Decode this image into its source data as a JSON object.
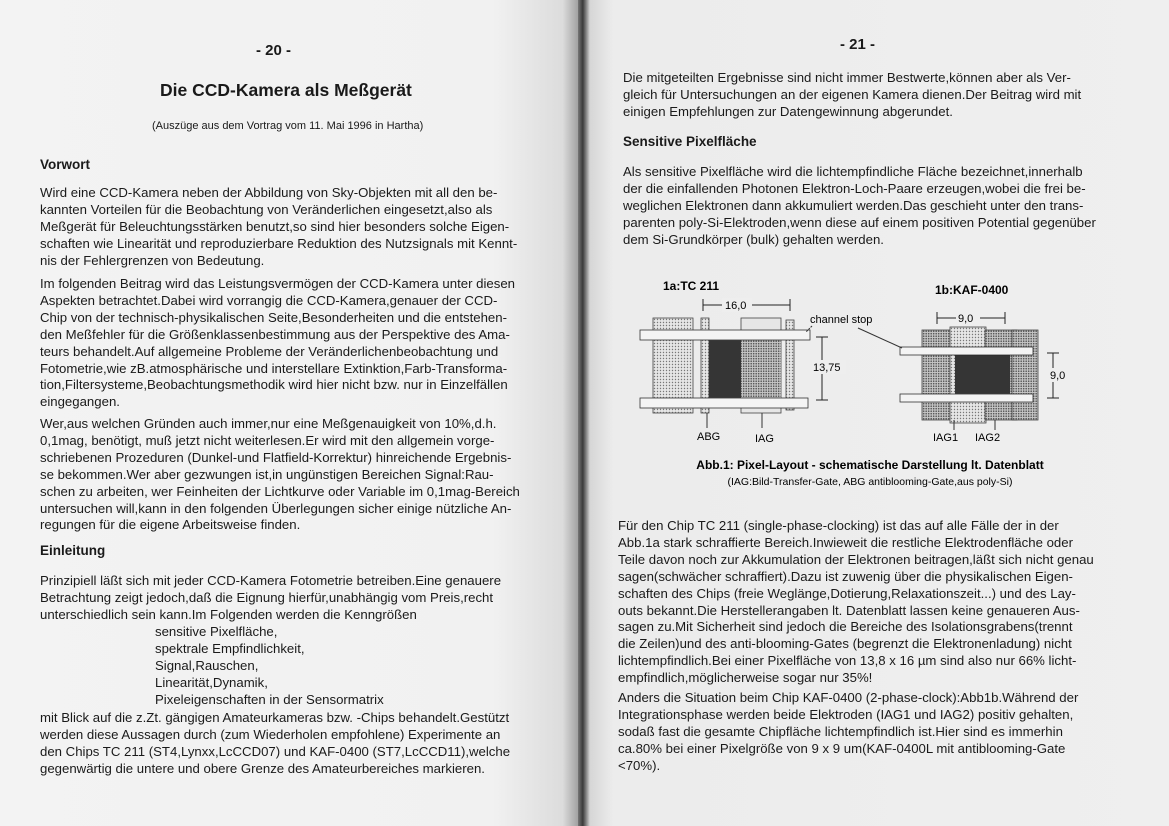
{
  "left_page": {
    "page_number": "- 20 -",
    "title": "Die CCD-Kamera als Meßgerät",
    "subtitle": "(Auszüge aus dem Vortrag vom 11. Mai 1996 in Hartha)",
    "section1_heading": "Vorwort",
    "para1": [
      "Wird eine CCD-Kamera neben der Abbildung von Sky-Objekten mit all den be-",
      "kannten Vorteilen für die Beobachtung von Veränderlichen eingesetzt,also als",
      "Meßgerät für Beleuchtungsstärken benutzt,so sind hier besonders solche Eigen-",
      "schaften wie Linearität und reproduzierbare Reduktion des Nutzsignals mit Kennt-",
      "nis der Fehlergrenzen von Bedeutung."
    ],
    "para2": [
      "Im folgenden Beitrag wird das Leistungsvermögen der CCD-Kamera unter diesen",
      "Aspekten betrachtet.Dabei wird vorrangig die CCD-Kamera,genauer der CCD-",
      "Chip von der technisch-physikalischen Seite,Besonderheiten und die entstehen-",
      "den Meßfehler für die Größenklassenbestimmung aus der Perspektive des Ama-",
      "teurs behandelt.Auf allgemeine Probleme der Veränderlichenbeobachtung und",
      "Fotometrie,wie zB.atmosphärische und interstellare Extinktion,Farb-Transforma-",
      "tion,Filtersysteme,Beobachtungsmethodik wird hier nicht bzw. nur in Einzelfällen",
      "eingegangen."
    ],
    "para3": [
      "Wer,aus welchen Gründen auch immer,nur eine Meßgenauigkeit von 10%,d.h.",
      "0,1mag, benötigt, muß jetzt nicht weiterlesen.Er wird mit den allgemein vorge-",
      "schriebenen Prozeduren (Dunkel-und Flatfield-Korrektur) hinreichende Ergebnis-",
      "se bekommen.Wer aber gezwungen ist,in ungünstigen Bereichen Signal:Rau-",
      "schen zu arbeiten, wer Feinheiten der Lichtkurve oder Variable im 0,1mag-Bereich",
      "untersuchen will,kann in den folgenden Überlegungen sicher einige nützliche An-",
      "regungen für die eigene Arbeitsweise finden."
    ],
    "section2_heading": "Einleitung",
    "para4": [
      "Prinzipiell läßt sich mit jeder CCD-Kamera Fotometrie betreiben.Eine genauere",
      "Betrachtung zeigt jedoch,daß die Eignung hierfür,unabhängig vom Preis,recht",
      "unterschiedlich sein kann.Im Folgenden werden die Kenngrößen"
    ],
    "list": [
      "sensitive Pixelfläche,",
      "spektrale Empfindlichkeit,",
      "Signal,Rauschen,",
      "Linearität,Dynamik,",
      "Pixeleigenschaften in der Sensormatrix"
    ],
    "para5": [
      "mit Blick auf die z.Zt. gängigen Amateurkameras bzw. -Chips behandelt.Gestützt",
      "werden diese Aussagen durch (zum Wiederholen empfohlene) Experimente an",
      "den Chips TC 211 (ST4,Lynxx,LcCCD07) und KAF-0400 (ST7,LcCCD11),welche",
      "gegenwärtig die untere und obere Grenze des Amateurbereiches markieren."
    ]
  },
  "right_page": {
    "page_number": "- 21 -",
    "para1": [
      "Die mitgeteilten Ergebnisse sind nicht immer Bestwerte,können aber als Ver-",
      "gleich für Untersuchungen an der eigenen Kamera dienen.Der Beitrag wird mit",
      "einigen Empfehlungen zur Datengewinnung abgerundet."
    ],
    "section_heading": "Sensitive Pixelfläche",
    "para2": [
      "Als sensitive Pixelfläche wird die lichtempfindliche Fläche bezeichnet,innerhalb",
      "der die einfallenden Photonen Elektron-Loch-Paare erzeugen,wobei die frei be-",
      "weglichen Elektronen dann akkumuliert werden.Das geschieht unter den trans-",
      "parenten poly-Si-Elektroden,wenn diese auf einem positiven Potential gegenüber",
      "dem Si-Grundkörper (bulk) gehalten werden."
    ],
    "figure": {
      "label_a": "1a:TC 211",
      "label_b": "1b:KAF-0400",
      "dim_a_width": "16,0",
      "dim_a_height": "13,75",
      "dim_b_width": "9,0",
      "dim_b_height": "9,0",
      "channel_stop": "channel stop",
      "abg": "ABG",
      "iag": "IAG",
      "iag1": "IAG1",
      "iag2": "IAG2",
      "caption": "Abb.1: Pixel-Layout - schematische Darstellung lt. Datenblatt",
      "subcaption": "(IAG:Bild-Transfer-Gate, ABG antiblooming-Gate,aus poly-Si)"
    },
    "para3": [
      "Für den Chip TC 211 (single-phase-clocking) ist das auf alle Fälle der in der",
      "Abb.1a stark schraffierte Bereich.Inwieweit die restliche Elektrodenfläche oder",
      "Teile davon noch zur Akkumulation der Elektronen beitragen,läßt sich nicht genau",
      "sagen(schwächer schraffiert).Dazu ist zuwenig über die physikalischen Eigen-",
      "schaften des Chips (freie Weglänge,Dotierung,Relaxationszeit...) und des Lay-",
      "outs bekannt.Die Herstellerangaben lt. Datenblatt lassen keine genaueren Aus-",
      "sagen zu.Mit Sicherheit sind jedoch die Bereiche des Isolationsgrabens(trennt",
      "die Zeilen)und des anti-blooming-Gates (begrenzt die Elektronenladung) nicht",
      "lichtempfindlich.Bei einer Pixelfläche von 13,8 x 16 µm sind also nur 66% licht-",
      "empfindlich,möglicherweise sogar nur 35%!"
    ],
    "para4": [
      "Anders die Situation beim Chip KAF-0400 (2-phase-clock):Abb1b.Während der",
      "Integrationsphase werden beide Elektroden (IAG1 und IAG2) positiv gehalten,",
      "sodaß fast die gesamte Chipfläche lichtempfindlich ist.Hier sind es immerhin",
      "ca.80% bei einer Pixelgröße von 9 x 9 um(KAF-0400L mit antiblooming-Gate",
      "<70%)."
    ]
  }
}
